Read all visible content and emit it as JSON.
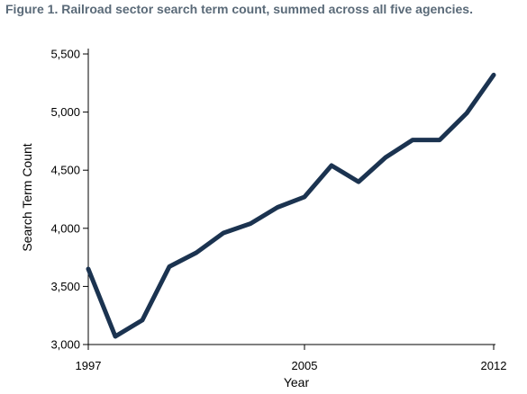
{
  "figure_title": "Figure 1. Railroad sector search term count, summed across all five agencies.",
  "colors": {
    "line": "#1b3350",
    "title": "#5a6a78"
  },
  "chart_data": {
    "type": "line",
    "title": "Figure 1. Railroad sector search term count, summed across all five agencies.",
    "xlabel": "Year",
    "ylabel": "Search Term Count",
    "xlim": [
      1997,
      2012
    ],
    "ylim": [
      3000,
      5500
    ],
    "x_ticks": [
      1997,
      2005,
      2012
    ],
    "x_tick_labels": [
      "1997",
      "2005",
      "2012"
    ],
    "y_ticks": [
      3000,
      3500,
      4000,
      4500,
      5000,
      5500
    ],
    "y_tick_labels": [
      "3,000",
      "3,500",
      "4,000",
      "4,500",
      "5,000",
      "5,500"
    ],
    "grid": false,
    "series": [
      {
        "x": [
          1997,
          1998,
          1999,
          2000,
          2001,
          2002,
          2003,
          2004,
          2005,
          2006,
          2007,
          2008,
          2009,
          2010,
          2011,
          2012
        ],
        "values": [
          3650,
          3070,
          3210,
          3670,
          3790,
          3960,
          4040,
          4180,
          4270,
          4540,
          4400,
          4610,
          4760,
          4760,
          4990,
          5320
        ]
      }
    ]
  }
}
